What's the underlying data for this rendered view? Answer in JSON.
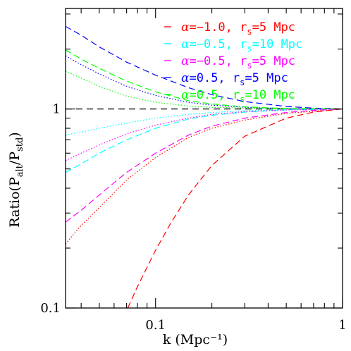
{
  "chart_data": {
    "type": "line",
    "title": "",
    "xlabel": "k (Mpc⁻¹)",
    "ylabel": "Ratio(P_alt/P_std)",
    "xscale": "log",
    "yscale": "log",
    "xlim": [
      0.033,
      1.0
    ],
    "ylim": [
      0.1,
      3.2
    ],
    "x_ticks": [
      {
        "value": 0.1,
        "label": "0.1"
      },
      {
        "value": 1.0,
        "label": "1"
      }
    ],
    "y_ticks": [
      {
        "value": 0.1,
        "label": "0.1"
      },
      {
        "value": 1.0,
        "label": "1"
      }
    ],
    "grid": false,
    "legend_position": "top-right",
    "reference_line": {
      "y": 1.0,
      "color": "#000000",
      "style": "dashed"
    },
    "series": [
      {
        "name": "α=−1.0, r_s=5 Mpc",
        "legend": {
          "greek": "α",
          "value": "=−1.0,",
          "r": "r",
          "sub": "s",
          "rest": "=5 Mpc"
        },
        "color": "#ff0000",
        "style": "dashed",
        "x": [
          0.071,
          0.08,
          0.1,
          0.12,
          0.15,
          0.2,
          0.3,
          0.5,
          0.7,
          1.0
        ],
        "y": [
          0.1,
          0.128,
          0.195,
          0.265,
          0.37,
          0.52,
          0.73,
          0.9,
          0.965,
          1.0
        ]
      },
      {
        "name": "α=−1.0, r_s=5 Mpc (dotted)",
        "color": "#ff0000",
        "style": "dotted",
        "x": [
          0.033,
          0.04,
          0.05,
          0.07,
          0.1,
          0.15,
          0.2,
          0.3,
          0.5,
          1.0
        ],
        "y": [
          0.21,
          0.26,
          0.32,
          0.44,
          0.57,
          0.72,
          0.8,
          0.88,
          0.95,
          1.0
        ]
      },
      {
        "name": "α=−0.5, r_s=10 Mpc",
        "legend": {
          "greek": "α",
          "value": "=−0.5,",
          "r": "r",
          "sub": "s",
          "rest": "=10 Mpc"
        },
        "color": "#00ffff",
        "style": "dashed",
        "x": [
          0.033,
          0.04,
          0.05,
          0.07,
          0.1,
          0.15,
          0.2,
          0.3,
          0.5,
          1.0
        ],
        "y": [
          0.48,
          0.53,
          0.6,
          0.7,
          0.8,
          0.89,
          0.93,
          0.965,
          0.99,
          1.0
        ]
      },
      {
        "name": "α=−0.5, r_s=10 Mpc (dotted)",
        "color": "#00ffff",
        "style": "dotted",
        "x": [
          0.033,
          0.05,
          0.07,
          0.1,
          0.15,
          0.2,
          0.3,
          0.5,
          1.0
        ],
        "y": [
          0.74,
          0.8,
          0.85,
          0.9,
          0.94,
          0.96,
          0.98,
          0.995,
          1.0
        ]
      },
      {
        "name": "α=−0.5, r_s=5 Mpc",
        "legend": {
          "greek": "α",
          "value": "=−0.5,",
          "r": "r",
          "sub": "s",
          "rest": "=5 Mpc"
        },
        "color": "#ff00ff",
        "style": "dashed",
        "x": [
          0.033,
          0.04,
          0.05,
          0.07,
          0.1,
          0.15,
          0.2,
          0.3,
          0.5,
          0.7,
          1.0
        ],
        "y": [
          0.27,
          0.31,
          0.37,
          0.48,
          0.6,
          0.74,
          0.82,
          0.9,
          0.96,
          0.985,
          1.0
        ]
      },
      {
        "name": "α=−0.5, r_s=5 Mpc (dotted)",
        "color": "#ff00ff",
        "style": "dotted",
        "x": [
          0.033,
          0.04,
          0.05,
          0.07,
          0.1,
          0.15,
          0.2,
          0.3,
          0.5,
          1.0
        ],
        "y": [
          0.55,
          0.6,
          0.66,
          0.75,
          0.83,
          0.9,
          0.94,
          0.97,
          0.99,
          1.0
        ]
      },
      {
        "name": "α=0.5, r_s=5 Mpc",
        "legend": {
          "greek": "α",
          "value": "=0.5,",
          "r": "r",
          "sub": "s",
          "rest": "=5 Mpc"
        },
        "color": "#0000ff",
        "style": "dashed",
        "x": [
          0.033,
          0.04,
          0.05,
          0.07,
          0.1,
          0.15,
          0.2,
          0.3,
          0.5,
          0.7,
          1.0
        ],
        "y": [
          2.6,
          2.35,
          2.05,
          1.72,
          1.48,
          1.28,
          1.18,
          1.09,
          1.03,
          1.01,
          1.0
        ]
      },
      {
        "name": "α=0.5, r_s=5 Mpc (dotted)",
        "color": "#0000ff",
        "style": "dotted",
        "x": [
          0.033,
          0.04,
          0.05,
          0.07,
          0.1,
          0.15,
          0.2,
          0.3,
          0.5,
          1.0
        ],
        "y": [
          1.85,
          1.67,
          1.5,
          1.3,
          1.17,
          1.08,
          1.045,
          1.02,
          1.005,
          1.0
        ]
      },
      {
        "name": "α=0.5, r_s=10 Mpc",
        "legend": {
          "greek": "α",
          "value": "=0.5,",
          "r": "r",
          "sub": "s",
          "rest": "=10 Mpc"
        },
        "color": "#00ff00",
        "style": "dashed",
        "x": [
          0.033,
          0.04,
          0.05,
          0.07,
          0.1,
          0.15,
          0.2,
          0.3,
          0.5,
          1.0
        ],
        "y": [
          1.98,
          1.78,
          1.6,
          1.38,
          1.22,
          1.1,
          1.06,
          1.025,
          1.005,
          1.0
        ]
      },
      {
        "name": "α=0.5, r_s=10 Mpc (dotted)",
        "color": "#00ff00",
        "style": "dotted",
        "x": [
          0.033,
          0.04,
          0.05,
          0.07,
          0.1,
          0.15,
          0.2,
          0.3,
          0.5,
          1.0
        ],
        "y": [
          1.55,
          1.43,
          1.3,
          1.16,
          1.08,
          1.035,
          1.02,
          1.01,
          1.002,
          1.0
        ]
      }
    ]
  }
}
